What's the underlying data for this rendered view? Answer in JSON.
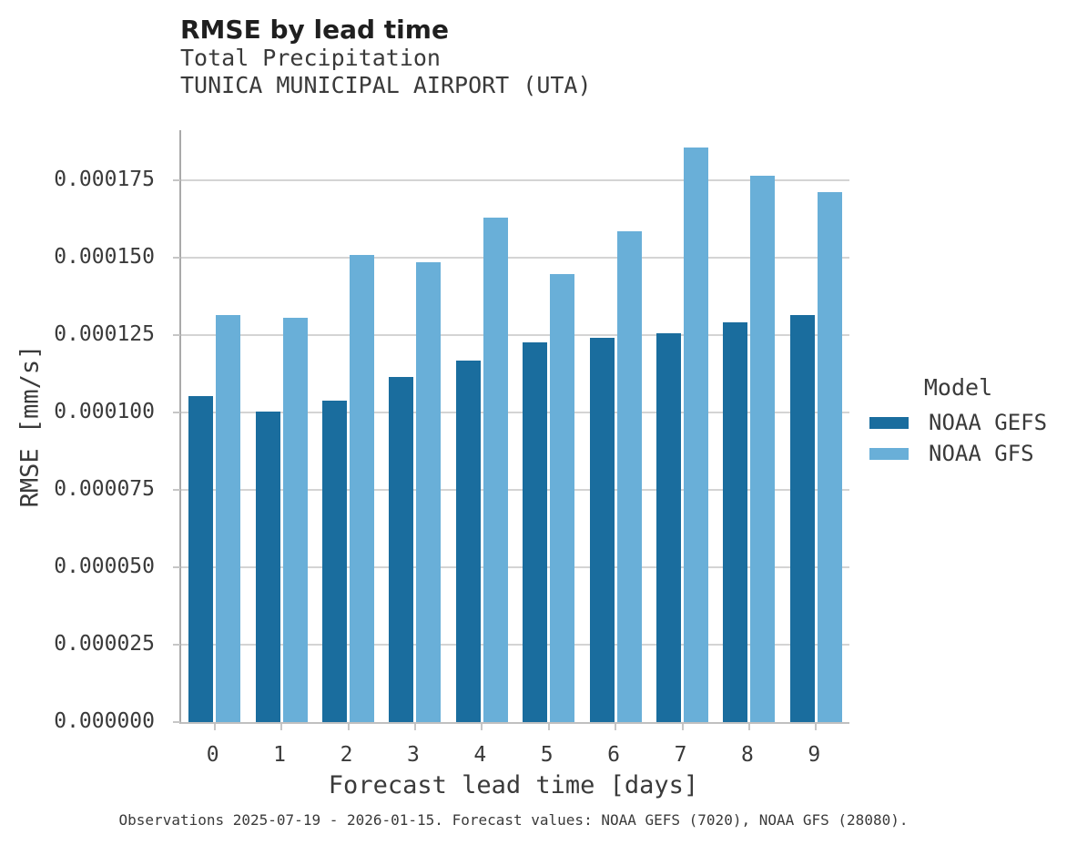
{
  "header": {
    "title": "RMSE by lead time",
    "subtitle_line1": "Total Precipitation",
    "subtitle_line2": "TUNICA MUNICIPAL AIRPORT (UTA)"
  },
  "chart_data": {
    "type": "bar",
    "title": "RMSE by lead time",
    "subtitle": [
      "Total Precipitation",
      "TUNICA MUNICIPAL AIRPORT (UTA)"
    ],
    "xlabel": "Forecast lead time [days]",
    "ylabel": "RMSE [mm/s]",
    "categories": [
      "0",
      "1",
      "2",
      "3",
      "4",
      "5",
      "6",
      "7",
      "8",
      "9"
    ],
    "series": [
      {
        "name": "NOAA GEFS",
        "color": "#1a6d9e",
        "values": [
          0.0001053,
          0.0001002,
          0.0001038,
          0.0001116,
          0.0001169,
          0.0001226,
          0.000124,
          0.0001256,
          0.000129,
          0.0001315
        ]
      },
      {
        "name": "NOAA GFS",
        "color": "#69afd8",
        "values": [
          0.0001315,
          0.0001307,
          0.0001509,
          0.0001485,
          0.0001631,
          0.0001448,
          0.0001584,
          0.0001855,
          0.0001765,
          0.0001713
        ]
      }
    ],
    "ylim": [
      0,
      0.0001912
    ],
    "yticks": [
      0.0,
      2.5e-05,
      5e-05,
      7.5e-05,
      0.0001,
      0.000125,
      0.00015,
      0.000175
    ],
    "ytick_labels": [
      "0.000000",
      "0.000025",
      "0.000050",
      "0.000075",
      "0.000100",
      "0.000125",
      "0.000150",
      "0.000175"
    ],
    "grid": true,
    "legend_position": "right"
  },
  "legend": {
    "title": "Model",
    "entries": [
      {
        "label": "NOAA GEFS",
        "color": "#1a6d9e"
      },
      {
        "label": "NOAA GFS",
        "color": "#69afd8"
      }
    ]
  },
  "caption": "Observations 2025-07-19 - 2026-01-15. Forecast values: NOAA GEFS (7020), NOAA GFS (28080).",
  "colors": {
    "gefs": "#1a6d9e",
    "gfs": "#69afd8",
    "gridline": "#d4d4d4",
    "text": "#3a3a3a"
  }
}
